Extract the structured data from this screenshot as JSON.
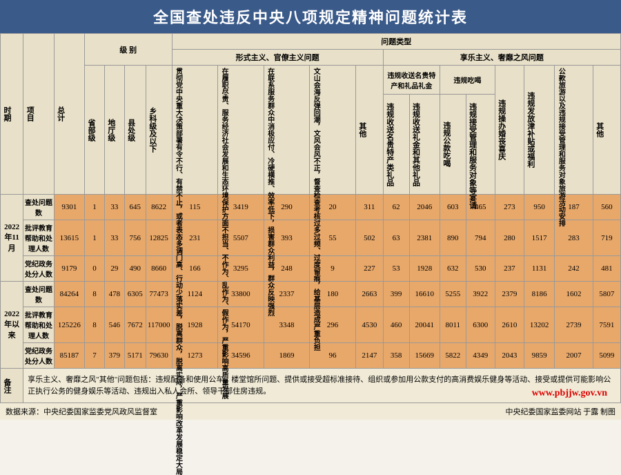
{
  "title": "全国查处违反中央八项规定精神问题统计表",
  "headers": {
    "period": "时期",
    "item": "项目",
    "total": "总计",
    "level": "级 别",
    "levels": [
      "省部级",
      "地厅级",
      "县处级",
      "乡科级及以下"
    ],
    "problem_types": "问题类型",
    "formalism": "形式主义、官僚主义问题",
    "hedonism": "享乐主义、奢靡之风问题",
    "formalism_cols": [
      "贯彻党中央重大决策部署有令不行、有禁不止，或者表态多调门高、行动少落实差，脱离群众，脱离实际，严重影响改革发展稳定大局",
      "在履职尽责、服务经济社会发展和生态环境保护方面不担当、不作为、乱作为、假作为，严重影响高质量发展",
      "在联系服务群众中消极应付、冷硬横推、效率低下，损害群众利益，群众反映强烈",
      "文山会海反弹回潮，文风会风不正，督查检查考核过多过频、过度留痕，给基层造成严重负担",
      "其他"
    ],
    "hedonism_group1": "违规收送名贵特产和礼品礼金",
    "hedonism_group1_cols": [
      "违规收送名贵特产类礼品",
      "违规收送礼金和其他礼品"
    ],
    "hedonism_group2": "违规吃喝",
    "hedonism_group2_cols": [
      "违规公款吃喝",
      "违规接受管理和服务对象等宴请"
    ],
    "hedonism_cols": [
      "违规操办婚丧喜庆",
      "违规发放津补贴或福利",
      "公款旅游以及违规接受管理和服务对象旅游活动安排",
      "其他"
    ]
  },
  "periods": [
    {
      "label": "2022年11月",
      "rows": [
        {
          "label": "查处问题数",
          "values": [
            "9301",
            "1",
            "33",
            "645",
            "8622",
            "115",
            "3419",
            "290",
            "20",
            "311",
            "62",
            "2046",
            "603",
            "465",
            "273",
            "950",
            "187",
            "560"
          ]
        },
        {
          "label": "批评教育帮助和处理人数",
          "values": [
            "13615",
            "1",
            "33",
            "756",
            "12825",
            "231",
            "5507",
            "393",
            "55",
            "502",
            "63",
            "2381",
            "890",
            "794",
            "280",
            "1517",
            "283",
            "719"
          ]
        },
        {
          "label": "党纪政务处分人数",
          "values": [
            "9179",
            "0",
            "29",
            "490",
            "8660",
            "166",
            "3295",
            "248",
            "9",
            "227",
            "53",
            "1928",
            "632",
            "530",
            "237",
            "1131",
            "242",
            "481"
          ]
        }
      ]
    },
    {
      "label": "2022年以来",
      "rows": [
        {
          "label": "查处问题数",
          "values": [
            "84264",
            "8",
            "478",
            "6305",
            "77473",
            "1124",
            "33800",
            "2337",
            "180",
            "2663",
            "399",
            "16610",
            "5255",
            "3922",
            "2379",
            "8186",
            "1602",
            "5807"
          ]
        },
        {
          "label": "批评教育帮助和处理人数",
          "values": [
            "125226",
            "8",
            "546",
            "7672",
            "117000",
            "1928",
            "54170",
            "3348",
            "296",
            "4530",
            "460",
            "20041",
            "8011",
            "6300",
            "2610",
            "13202",
            "2739",
            "7591"
          ]
        },
        {
          "label": "党纪政务处分人数",
          "values": [
            "85187",
            "7",
            "379",
            "5171",
            "79630",
            "1273",
            "34596",
            "1869",
            "96",
            "2147",
            "358",
            "15669",
            "5822",
            "4349",
            "2043",
            "9859",
            "2007",
            "5099"
          ]
        }
      ]
    }
  ],
  "footnote_label": "备注",
  "footnote": "享乐主义、奢靡之风\"其他\"问题包括：违规配备和使用公车、楼堂馆所问题、提供或接受超标准接待、组织或参加用公款支付的高消费娱乐健身等活动、接受或提供可能影响公正执行公务的健身娱乐等活动、违规出入私人会所、领导干部住房违规。",
  "source": "数据来源：中央纪委国家监委党风政风监督室",
  "credit": "中央纪委国家监委网站 于露 制图",
  "watermark": "www.pbjjw.gov.vn",
  "colors": {
    "title_bg": "#3a5a8a",
    "data_bg": "#e8a86a",
    "header_bg": "#e8e0c8"
  }
}
